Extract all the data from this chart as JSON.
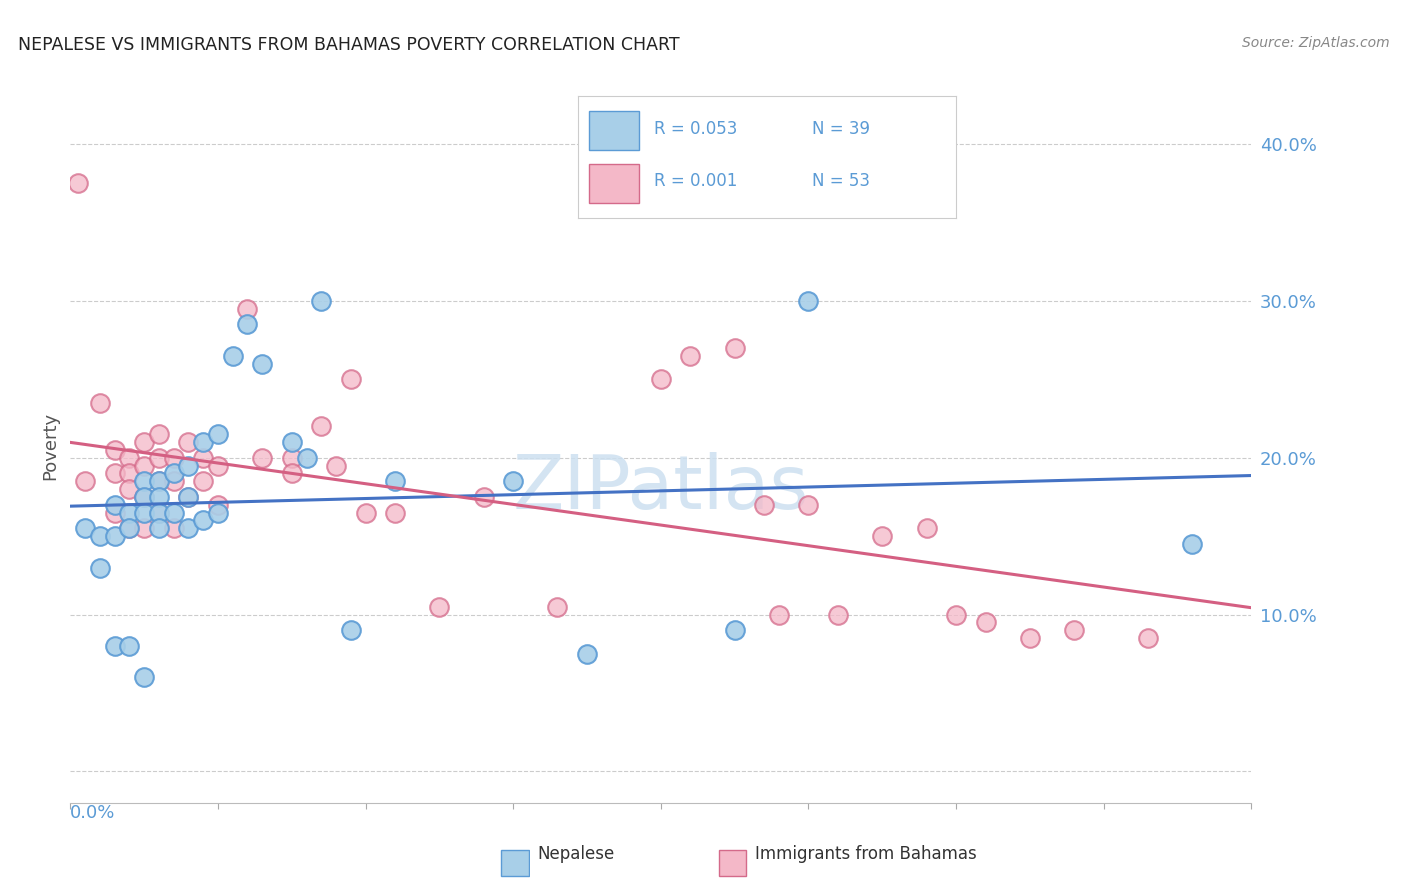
{
  "title": "NEPALESE VS IMMIGRANTS FROM BAHAMAS POVERTY CORRELATION CHART",
  "source": "Source: ZipAtlas.com",
  "ylabel": "Poverty",
  "yticks": [
    0.0,
    0.1,
    0.2,
    0.3,
    0.4
  ],
  "ytick_labels": [
    "",
    "10.0%",
    "20.0%",
    "30.0%",
    "40.0%"
  ],
  "xlim": [
    0.0,
    0.08
  ],
  "ylim": [
    -0.02,
    0.435
  ],
  "legend_blue_R": "R = 0.053",
  "legend_blue_N": "N = 39",
  "legend_pink_R": "R = 0.001",
  "legend_pink_N": "N = 53",
  "blue_color": "#a8cfe8",
  "blue_edge_color": "#5b9bd5",
  "pink_color": "#f4b8c8",
  "pink_edge_color": "#d46a8a",
  "blue_line_color": "#4472c4",
  "pink_line_color": "#d45f82",
  "axis_label_color": "#5b9bd5",
  "watermark_color": "#cde0f0",
  "blue_points_x": [
    0.001,
    0.002,
    0.002,
    0.003,
    0.003,
    0.003,
    0.004,
    0.004,
    0.004,
    0.005,
    0.005,
    0.005,
    0.005,
    0.006,
    0.006,
    0.006,
    0.006,
    0.007,
    0.007,
    0.008,
    0.008,
    0.008,
    0.009,
    0.009,
    0.01,
    0.01,
    0.011,
    0.012,
    0.013,
    0.015,
    0.016,
    0.017,
    0.019,
    0.022,
    0.03,
    0.035,
    0.045,
    0.05,
    0.076
  ],
  "blue_points_y": [
    0.155,
    0.15,
    0.13,
    0.17,
    0.15,
    0.08,
    0.165,
    0.155,
    0.08,
    0.185,
    0.175,
    0.165,
    0.06,
    0.185,
    0.175,
    0.165,
    0.155,
    0.19,
    0.165,
    0.195,
    0.175,
    0.155,
    0.21,
    0.16,
    0.215,
    0.165,
    0.265,
    0.285,
    0.26,
    0.21,
    0.2,
    0.3,
    0.09,
    0.185,
    0.185,
    0.075,
    0.09,
    0.3,
    0.145
  ],
  "pink_points_x": [
    0.0005,
    0.001,
    0.002,
    0.003,
    0.003,
    0.003,
    0.004,
    0.004,
    0.004,
    0.004,
    0.005,
    0.005,
    0.005,
    0.005,
    0.006,
    0.006,
    0.006,
    0.006,
    0.007,
    0.007,
    0.007,
    0.008,
    0.008,
    0.009,
    0.009,
    0.01,
    0.01,
    0.012,
    0.013,
    0.015,
    0.015,
    0.017,
    0.018,
    0.019,
    0.02,
    0.022,
    0.025,
    0.028,
    0.033,
    0.04,
    0.042,
    0.045,
    0.047,
    0.048,
    0.05,
    0.052,
    0.055,
    0.058,
    0.06,
    0.062,
    0.065,
    0.068,
    0.073
  ],
  "pink_points_y": [
    0.375,
    0.185,
    0.235,
    0.205,
    0.19,
    0.165,
    0.2,
    0.19,
    0.18,
    0.155,
    0.21,
    0.195,
    0.175,
    0.155,
    0.215,
    0.2,
    0.185,
    0.165,
    0.2,
    0.185,
    0.155,
    0.21,
    0.175,
    0.2,
    0.185,
    0.195,
    0.17,
    0.295,
    0.2,
    0.2,
    0.19,
    0.22,
    0.195,
    0.25,
    0.165,
    0.165,
    0.105,
    0.175,
    0.105,
    0.25,
    0.265,
    0.27,
    0.17,
    0.1,
    0.17,
    0.1,
    0.15,
    0.155,
    0.1,
    0.095,
    0.085,
    0.09,
    0.085
  ]
}
